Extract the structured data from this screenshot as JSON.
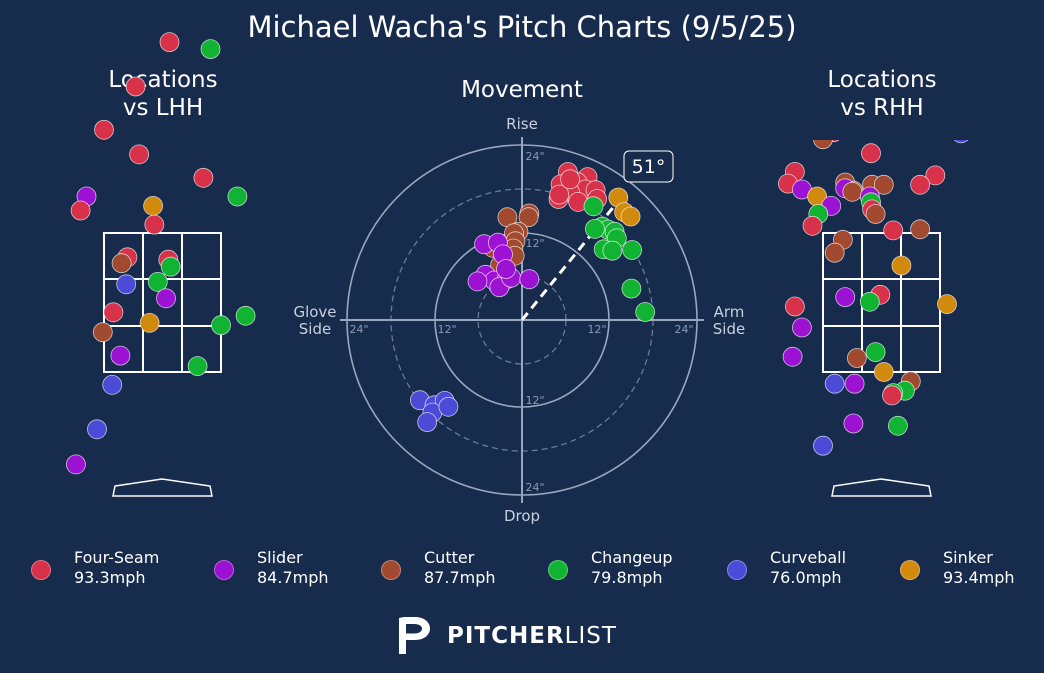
{
  "title": "Michael Wacha's Pitch Charts (9/5/25)",
  "panels": {
    "lhh_title": "Locations\nvs LHH",
    "movement_title": "Movement",
    "rhh_title": "Locations\nvs RHH"
  },
  "movement_labels": {
    "top": "Rise",
    "bottom": "Drop",
    "left": "Glove\nSide",
    "right": "Arm\nSide",
    "tick_inner": "12\"",
    "tick_outer": "24\"",
    "arm_angle": "51°"
  },
  "colors": {
    "Four-Seam": "#d7324a",
    "Slider": "#9b12d2",
    "Cutter": "#a24a30",
    "Changeup": "#10b432",
    "Curveball": "#4b4bd8",
    "Sinker": "#d18a0c",
    "background": "#172b4d"
  },
  "legend": [
    {
      "name": "Four-Seam",
      "speed": "93.3mph"
    },
    {
      "name": "Slider",
      "speed": "84.7mph"
    },
    {
      "name": "Cutter",
      "speed": "87.7mph"
    },
    {
      "name": "Changeup",
      "speed": "79.8mph"
    },
    {
      "name": "Curveball",
      "speed": "76.0mph"
    },
    {
      "name": "Sinker",
      "speed": "93.4mph"
    }
  ],
  "brand": {
    "part1": "PITCHER",
    "part2": "LIST"
  },
  "chart_data": [
    {
      "type": "scatter",
      "title": "Locations vs LHH",
      "units": "zone width = 1, x from center (catcher view), y from zone bottom",
      "points": [
        {
          "pitch": "Four-Seam",
          "x": 0.06,
          "y": 2.82
        },
        {
          "pitch": "Changeup",
          "x": 0.41,
          "y": 2.76
        },
        {
          "pitch": "Four-Seam",
          "x": -0.23,
          "y": 2.44
        },
        {
          "pitch": "Four-Seam",
          "x": -0.5,
          "y": 2.07
        },
        {
          "pitch": "Four-Seam",
          "x": -0.2,
          "y": 1.86
        },
        {
          "pitch": "Four-Seam",
          "x": 0.35,
          "y": 1.66
        },
        {
          "pitch": "Changeup",
          "x": 0.64,
          "y": 1.5
        },
        {
          "pitch": "Slider",
          "x": -0.65,
          "y": 1.5
        },
        {
          "pitch": "Four-Seam",
          "x": -0.7,
          "y": 1.38
        },
        {
          "pitch": "Sinker",
          "x": -0.08,
          "y": 1.42
        },
        {
          "pitch": "Four-Seam",
          "x": -0.07,
          "y": 1.26
        },
        {
          "pitch": "Four-Seam",
          "x": -0.3,
          "y": 0.98
        },
        {
          "pitch": "Cutter",
          "x": -0.35,
          "y": 0.93
        },
        {
          "pitch": "Four-Seam",
          "x": 0.05,
          "y": 0.96
        },
        {
          "pitch": "Changeup",
          "x": 0.07,
          "y": 0.9
        },
        {
          "pitch": "Changeup",
          "x": -0.04,
          "y": 0.77
        },
        {
          "pitch": "Curveball",
          "x": -0.31,
          "y": 0.75
        },
        {
          "pitch": "Slider",
          "x": 0.03,
          "y": 0.63
        },
        {
          "pitch": "Changeup",
          "x": 0.71,
          "y": 0.48
        },
        {
          "pitch": "Four-Seam",
          "x": -0.42,
          "y": 0.51
        },
        {
          "pitch": "Cutter",
          "x": -0.51,
          "y": 0.34
        },
        {
          "pitch": "Sinker",
          "x": -0.11,
          "y": 0.42
        },
        {
          "pitch": "Changeup",
          "x": 0.5,
          "y": 0.4
        },
        {
          "pitch": "Slider",
          "x": -0.36,
          "y": 0.14
        },
        {
          "pitch": "Changeup",
          "x": 0.3,
          "y": 0.05
        },
        {
          "pitch": "Curveball",
          "x": -0.43,
          "y": -0.11
        },
        {
          "pitch": "Curveball",
          "x": -0.56,
          "y": -0.49
        },
        {
          "pitch": "Slider",
          "x": -0.74,
          "y": -0.79
        }
      ]
    },
    {
      "type": "scatter",
      "title": "Movement",
      "xlabel": "Glove Side / Arm Side",
      "ylabel": "Drop / Rise",
      "units": "inches",
      "xlim": [
        -24,
        24
      ],
      "ylim": [
        -24,
        24
      ],
      "arm_angle_deg": 51,
      "points": [
        {
          "pitch": "Four-Seam",
          "x": 6.3,
          "y": 20.3
        },
        {
          "pitch": "Four-Seam",
          "x": 9.0,
          "y": 19.6
        },
        {
          "pitch": "Four-Seam",
          "x": 5.3,
          "y": 18.6
        },
        {
          "pitch": "Four-Seam",
          "x": 7.6,
          "y": 18.9
        },
        {
          "pitch": "Four-Seam",
          "x": 8.7,
          "y": 17.9
        },
        {
          "pitch": "Four-Seam",
          "x": 10.1,
          "y": 17.8
        },
        {
          "pitch": "Four-Seam",
          "x": 6.6,
          "y": 17.5
        },
        {
          "pitch": "Four-Seam",
          "x": 5.0,
          "y": 16.6
        },
        {
          "pitch": "Four-Seam",
          "x": 7.7,
          "y": 16.2
        },
        {
          "pitch": "Four-Seam",
          "x": 10.3,
          "y": 16.6
        },
        {
          "pitch": "Four-Seam",
          "x": 5.1,
          "y": 17.2
        },
        {
          "pitch": "Four-Seam",
          "x": 6.6,
          "y": 19.3
        },
        {
          "pitch": "Sinker",
          "x": 13.2,
          "y": 16.8
        },
        {
          "pitch": "Sinker",
          "x": 14.0,
          "y": 14.8
        },
        {
          "pitch": "Sinker",
          "x": 14.9,
          "y": 14.2
        },
        {
          "pitch": "Changeup",
          "x": 9.8,
          "y": 15.6
        },
        {
          "pitch": "Changeup",
          "x": 11.0,
          "y": 12.8
        },
        {
          "pitch": "Changeup",
          "x": 11.8,
          "y": 12.4
        },
        {
          "pitch": "Changeup",
          "x": 12.7,
          "y": 12.1
        },
        {
          "pitch": "Changeup",
          "x": 13.0,
          "y": 11.2
        },
        {
          "pitch": "Changeup",
          "x": 10.0,
          "y": 12.5
        },
        {
          "pitch": "Changeup",
          "x": 11.2,
          "y": 9.7
        },
        {
          "pitch": "Changeup",
          "x": 12.4,
          "y": 9.5
        },
        {
          "pitch": "Changeup",
          "x": 15.1,
          "y": 9.6
        },
        {
          "pitch": "Changeup",
          "x": 15.0,
          "y": 4.3
        },
        {
          "pitch": "Changeup",
          "x": 16.9,
          "y": 1.1
        },
        {
          "pitch": "Cutter",
          "x": 1.0,
          "y": 14.6
        },
        {
          "pitch": "Cutter",
          "x": 0.9,
          "y": 14.1
        },
        {
          "pitch": "Cutter",
          "x": -2.0,
          "y": 14.1
        },
        {
          "pitch": "Cutter",
          "x": -0.5,
          "y": 12.1
        },
        {
          "pitch": "Cutter",
          "x": -1.1,
          "y": 11.9
        },
        {
          "pitch": "Cutter",
          "x": -0.9,
          "y": 10.8
        },
        {
          "pitch": "Cutter",
          "x": -1.2,
          "y": 9.8
        },
        {
          "pitch": "Cutter",
          "x": -4.0,
          "y": 9.9
        },
        {
          "pitch": "Cutter",
          "x": -1.0,
          "y": 8.8
        },
        {
          "pitch": "Cutter",
          "x": -3.0,
          "y": 7.5
        },
        {
          "pitch": "Slider",
          "x": -5.2,
          "y": 10.4
        },
        {
          "pitch": "Slider",
          "x": -3.3,
          "y": 10.6
        },
        {
          "pitch": "Slider",
          "x": -2.6,
          "y": 9.0
        },
        {
          "pitch": "Slider",
          "x": -5.0,
          "y": 6.2
        },
        {
          "pitch": "Slider",
          "x": -3.8,
          "y": 5.4
        },
        {
          "pitch": "Slider",
          "x": -2.1,
          "y": 5.6
        },
        {
          "pitch": "Slider",
          "x": -6.1,
          "y": 5.3
        },
        {
          "pitch": "Slider",
          "x": -3.1,
          "y": 4.5
        },
        {
          "pitch": "Slider",
          "x": -1.5,
          "y": 5.8
        },
        {
          "pitch": "Slider",
          "x": 1.0,
          "y": 5.6
        },
        {
          "pitch": "Slider",
          "x": -2.2,
          "y": 7.0
        },
        {
          "pitch": "Curveball",
          "x": -14.0,
          "y": -11.0
        },
        {
          "pitch": "Curveball",
          "x": -12.0,
          "y": -11.7
        },
        {
          "pitch": "Curveball",
          "x": -10.6,
          "y": -11.1
        },
        {
          "pitch": "Curveball",
          "x": -12.3,
          "y": -12.7
        },
        {
          "pitch": "Curveball",
          "x": -13.0,
          "y": -14.0
        },
        {
          "pitch": "Curveball",
          "x": -10.1,
          "y": -11.9
        }
      ]
    },
    {
      "type": "scatter",
      "title": "Locations vs RHH",
      "units": "zone width = 1, x from center (catcher view), y from zone bottom",
      "points": [
        {
          "pitch": "Four-Seam",
          "x": -0.1,
          "y": 2.33
        },
        {
          "pitch": "Four-Seam",
          "x": 0.68,
          "y": 2.33
        },
        {
          "pitch": "Curveball",
          "x": 0.68,
          "y": 2.04
        },
        {
          "pitch": "Four-Seam",
          "x": -0.41,
          "y": 2.05
        },
        {
          "pitch": "Cutter",
          "x": -0.5,
          "y": 1.99
        },
        {
          "pitch": "Four-Seam",
          "x": -0.09,
          "y": 1.87
        },
        {
          "pitch": "Four-Seam",
          "x": -0.74,
          "y": 1.71
        },
        {
          "pitch": "Four-Seam",
          "x": 0.46,
          "y": 1.68
        },
        {
          "pitch": "Four-Seam",
          "x": -0.8,
          "y": 1.61
        },
        {
          "pitch": "Slider",
          "x": -0.68,
          "y": 1.56
        },
        {
          "pitch": "Cutter",
          "x": -0.31,
          "y": 1.62
        },
        {
          "pitch": "Cutter",
          "x": -0.24,
          "y": 1.55
        },
        {
          "pitch": "Slider",
          "x": -0.31,
          "y": 1.57
        },
        {
          "pitch": "Cutter",
          "x": -0.08,
          "y": 1.6
        },
        {
          "pitch": "Cutter",
          "x": 0.02,
          "y": 1.6
        },
        {
          "pitch": "Four-Seam",
          "x": 0.33,
          "y": 1.6
        },
        {
          "pitch": "Cutter",
          "x": -0.25,
          "y": 1.54
        },
        {
          "pitch": "Slider",
          "x": -0.1,
          "y": 1.5
        },
        {
          "pitch": "Sinker",
          "x": -0.55,
          "y": 1.5
        },
        {
          "pitch": "Changeup",
          "x": -0.09,
          "y": 1.45
        },
        {
          "pitch": "Slider",
          "x": -0.43,
          "y": 1.42
        },
        {
          "pitch": "Four-Seam",
          "x": -0.08,
          "y": 1.39
        },
        {
          "pitch": "Cutter",
          "x": -0.05,
          "y": 1.35
        },
        {
          "pitch": "Changeup",
          "x": -0.54,
          "y": 1.35
        },
        {
          "pitch": "Four-Seam",
          "x": -0.59,
          "y": 1.25
        },
        {
          "pitch": "Four-Seam",
          "x": 0.1,
          "y": 1.21
        },
        {
          "pitch": "Cutter",
          "x": 0.33,
          "y": 1.22
        },
        {
          "pitch": "Cutter",
          "x": -0.33,
          "y": 1.13
        },
        {
          "pitch": "Cutter",
          "x": -0.4,
          "y": 1.02
        },
        {
          "pitch": "Sinker",
          "x": 0.17,
          "y": 0.91
        },
        {
          "pitch": "Four-Seam",
          "x": -0.01,
          "y": 0.66
        },
        {
          "pitch": "Slider",
          "x": -0.31,
          "y": 0.64
        },
        {
          "pitch": "Changeup",
          "x": -0.1,
          "y": 0.6
        },
        {
          "pitch": "Four-Seam",
          "x": -0.74,
          "y": 0.56
        },
        {
          "pitch": "Slider",
          "x": -0.68,
          "y": 0.38
        },
        {
          "pitch": "Sinker",
          "x": 0.56,
          "y": 0.58
        },
        {
          "pitch": "Cutter",
          "x": -0.21,
          "y": 0.12
        },
        {
          "pitch": "Changeup",
          "x": -0.05,
          "y": 0.17
        },
        {
          "pitch": "Slider",
          "x": -0.76,
          "y": 0.13
        },
        {
          "pitch": "Sinker",
          "x": 0.02,
          "y": 0.0
        },
        {
          "pitch": "Curveball",
          "x": -0.4,
          "y": -0.1
        },
        {
          "pitch": "Slider",
          "x": -0.23,
          "y": -0.1
        },
        {
          "pitch": "Cutter",
          "x": 0.25,
          "y": -0.08
        },
        {
          "pitch": "Changeup",
          "x": 0.2,
          "y": -0.16
        },
        {
          "pitch": "Changeup",
          "x": 0.1,
          "y": -0.18
        },
        {
          "pitch": "Four-Seam",
          "x": 0.09,
          "y": -0.2
        },
        {
          "pitch": "Slider",
          "x": -0.24,
          "y": -0.44
        },
        {
          "pitch": "Changeup",
          "x": 0.14,
          "y": -0.46
        },
        {
          "pitch": "Curveball",
          "x": -0.5,
          "y": -0.63
        }
      ]
    }
  ]
}
